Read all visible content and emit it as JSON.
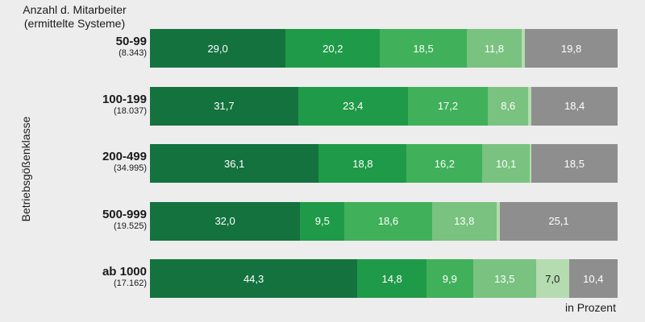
{
  "header": {
    "line1": "Anzahl d. Mitarbeiter",
    "line2": "(ermittelte Systeme)"
  },
  "chart_data": {
    "type": "bar",
    "orientation": "horizontal",
    "stacked": true,
    "xlabel": "in Prozent",
    "ylabel": "Betriebsgößenklasse",
    "xlim": [
      0,
      100
    ],
    "grid": false,
    "categories": [
      {
        "label": "50-99",
        "count": "(8.343)"
      },
      {
        "label": "100-199",
        "count": "(18.037)"
      },
      {
        "label": "200-499",
        "count": "(34.995)"
      },
      {
        "label": "500-999",
        "count": "(19.525)"
      },
      {
        "label": "ab 1000",
        "count": "(17.162)"
      }
    ],
    "series": [
      {
        "color": "#14723f",
        "values": [
          29.0,
          31.7,
          36.1,
          32.0,
          44.3
        ],
        "labels": [
          "29,0",
          "31,7",
          "36,1",
          "32,0",
          "44,3"
        ]
      },
      {
        "color": "#1f9a48",
        "values": [
          20.2,
          23.4,
          18.8,
          9.5,
          14.8
        ],
        "labels": [
          "20,2",
          "23,4",
          "18,8",
          "9,5",
          "14,8"
        ]
      },
      {
        "color": "#40b05a",
        "values": [
          18.5,
          17.2,
          16.2,
          18.6,
          9.9
        ],
        "labels": [
          "18,5",
          "17,2",
          "16,2",
          "18,6",
          "9,9"
        ]
      },
      {
        "color": "#79c280",
        "values": [
          11.8,
          8.6,
          10.1,
          13.8,
          13.5
        ],
        "labels": [
          "11,8",
          "8,6",
          "10,1",
          "13,8",
          "13,5"
        ]
      },
      {
        "color": "#b5dcb0",
        "values": [
          0.7,
          0.7,
          0.3,
          0.7,
          7.0
        ],
        "labels": [
          "",
          "",
          "",
          "",
          "7,0"
        ]
      },
      {
        "color": "#8e8e8e",
        "values": [
          19.8,
          18.4,
          18.5,
          25.1,
          10.4
        ],
        "labels": [
          "19,8",
          "18,4",
          "18,5",
          "25,1",
          "10,4"
        ]
      }
    ]
  }
}
